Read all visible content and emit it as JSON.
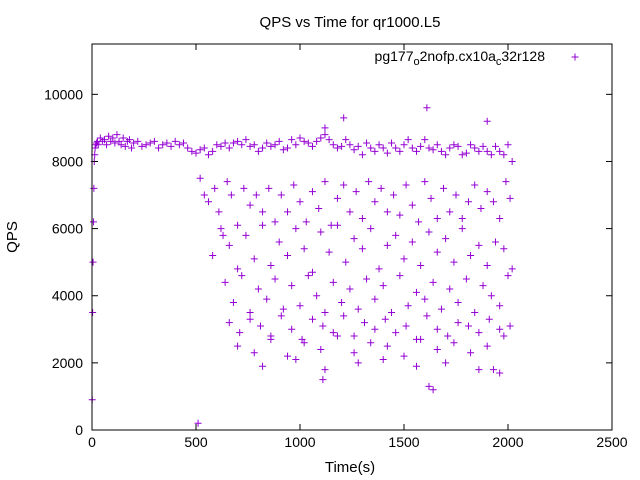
{
  "chart_data": {
    "type": "scatter",
    "title": "QPS vs Time for qr1000.L5",
    "xlabel": "Time(s)",
    "ylabel": "QPS",
    "xlim": [
      0,
      2500
    ],
    "ylim": [
      0,
      11500
    ],
    "xticks": [
      0,
      500,
      1000,
      1500,
      2000,
      2500
    ],
    "yticks": [
      0,
      2000,
      4000,
      6000,
      8000,
      10000
    ],
    "xtick_labels": [
      "0",
      "500",
      "1000",
      "1500",
      "2000",
      "2500"
    ],
    "ytick_labels": [
      "0",
      "2000",
      "4000",
      "6000",
      "8000",
      "10000"
    ],
    "grid": false,
    "legend": "top-right",
    "marker": "+",
    "series": [
      {
        "name": "pg177_o2nofp.cx10a_c32r128",
        "name_parts": [
          "pg177",
          "o",
          "2nofp.cx10a",
          "c",
          "32r128"
        ],
        "color": "#9400d3",
        "x": [
          1,
          3,
          5,
          7,
          9,
          11,
          13,
          15,
          18,
          22,
          26,
          30,
          40,
          50,
          60,
          70,
          80,
          90,
          100,
          110,
          120,
          130,
          140,
          150,
          160,
          170,
          180,
          190,
          200,
          220,
          240,
          260,
          280,
          300,
          320,
          340,
          360,
          380,
          400,
          420,
          440,
          460,
          480,
          500,
          520,
          540,
          560,
          580,
          600,
          620,
          640,
          660,
          680,
          700,
          720,
          740,
          760,
          780,
          800,
          820,
          840,
          860,
          880,
          900,
          920,
          940,
          960,
          980,
          1000,
          1020,
          1040,
          1060,
          1080,
          1100,
          1120,
          1140,
          1160,
          1180,
          1200,
          1220,
          1240,
          1260,
          1280,
          1300,
          1320,
          1340,
          1360,
          1380,
          1400,
          1420,
          1440,
          1460,
          1480,
          1500,
          1520,
          1540,
          1560,
          1580,
          1600,
          1620,
          1640,
          1660,
          1680,
          1700,
          1720,
          1740,
          1760,
          1780,
          1800,
          1820,
          1840,
          1860,
          1880,
          1900,
          1920,
          1940,
          1960,
          1980,
          2000,
          2020,
          520,
          560,
          590,
          610,
          630,
          650,
          670,
          700,
          730,
          760,
          790,
          820,
          850,
          880,
          910,
          940,
          970,
          1000,
          1030,
          1060,
          1090,
          1120,
          1150,
          1180,
          1210,
          1240,
          1270,
          1300,
          1330,
          1360,
          1390,
          1420,
          1450,
          1480,
          1510,
          1540,
          1570,
          1600,
          1630,
          1660,
          1690,
          1720,
          1750,
          1780,
          1810,
          1840,
          1870,
          1900,
          1930,
          1960,
          1990,
          2010,
          540,
          580,
          620,
          660,
          700,
          740,
          780,
          820,
          860,
          900,
          940,
          980,
          1020,
          1060,
          1100,
          1140,
          1180,
          1220,
          1260,
          1300,
          1340,
          1380,
          1420,
          1460,
          1500,
          1540,
          1580,
          1620,
          1660,
          1700,
          1740,
          1780,
          1820,
          1860,
          1900,
          1940,
          1980,
          2020,
          640,
          680,
          720,
          760,
          800,
          840,
          880,
          920,
          960,
          1000,
          1040,
          1080,
          1120,
          1160,
          1200,
          1240,
          1280,
          1320,
          1360,
          1400,
          1440,
          1480,
          1520,
          1560,
          1600,
          1640,
          1680,
          1720,
          1760,
          1800,
          1840,
          1880,
          1920,
          1960,
          2000,
          660,
          710,
          760,
          810,
          860,
          910,
          960,
          1010,
          1060,
          1110,
          1160,
          1210,
          1260,
          1310,
          1360,
          1410,
          1460,
          1510,
          1560,
          1610,
          1660,
          1710,
          1760,
          1810,
          1860,
          1910,
          1960,
          2010,
          700,
          780,
          860,
          940,
          1020,
          1100,
          1180,
          1260,
          1340,
          1420,
          1500,
          1580,
          1660,
          1740,
          1820,
          1900,
          1980,
          820,
          980,
          1120,
          1280,
          1400,
          1560,
          1700,
          1860,
          1960,
          1110,
          1620,
          1930,
          1640,
          1120,
          510,
          1610,
          1900,
          1210
        ],
        "y": [
          900,
          3500,
          5000,
          6200,
          7200,
          8000,
          8200,
          8400,
          8500,
          8550,
          8600,
          8500,
          8700,
          8600,
          8650,
          8500,
          8750,
          8600,
          8700,
          8550,
          8800,
          8600,
          8500,
          8700,
          8450,
          8600,
          8650,
          8400,
          8550,
          8600,
          8450,
          8500,
          8550,
          8600,
          8400,
          8500,
          8550,
          8450,
          8600,
          8500,
          8550,
          8400,
          8300,
          8250,
          8350,
          8400,
          8200,
          8300,
          8500,
          8450,
          8550,
          8400,
          8550,
          8600,
          8500,
          8650,
          8450,
          8500,
          8300,
          8400,
          8550,
          8450,
          8500,
          8600,
          8350,
          8400,
          8650,
          8500,
          8700,
          8600,
          8550,
          8450,
          8600,
          8700,
          8800,
          8650,
          8500,
          8400,
          8450,
          8650,
          8500,
          8350,
          8450,
          8200,
          8550,
          8400,
          8300,
          8500,
          8400,
          8250,
          8550,
          8400,
          8300,
          8500,
          8650,
          8400,
          8300,
          8450,
          8650,
          8400,
          8350,
          8500,
          8300,
          8200,
          8400,
          8500,
          8450,
          8200,
          8250,
          8500,
          8400,
          8300,
          8450,
          8300,
          8200,
          8450,
          8300,
          8200,
          8500,
          8000,
          7500,
          6800,
          7200,
          6500,
          5800,
          7400,
          7000,
          6100,
          7200,
          6700,
          7000,
          6500,
          7200,
          6200,
          7000,
          6500,
          7300,
          6800,
          6200,
          7100,
          6600,
          7400,
          6100,
          6900,
          7300,
          6500,
          7100,
          6300,
          7400,
          6800,
          7200,
          6500,
          7000,
          6400,
          7300,
          6700,
          6200,
          7400,
          6900,
          6300,
          7200,
          6500,
          7000,
          6300,
          6800,
          7300,
          6600,
          7100,
          6800,
          6300,
          7400,
          6900,
          7000,
          5200,
          6000,
          5500,
          4800,
          5800,
          5100,
          6100,
          4900,
          5600,
          5200,
          6000,
          5400,
          4700,
          5900,
          5300,
          6100,
          5000,
          5700,
          5400,
          6000,
          4800,
          5500,
          5800,
          5100,
          5600,
          4900,
          5900,
          5300,
          5700,
          5000,
          6000,
          5200,
          5500,
          4900,
          5600,
          5400,
          4800,
          4400,
          3800,
          4600,
          3500,
          4200,
          3900,
          4500,
          3600,
          4300,
          3700,
          4600,
          4000,
          3500,
          4400,
          3800,
          4200,
          3600,
          4500,
          3900,
          4300,
          3500,
          4600,
          3700,
          4100,
          3900,
          4400,
          3600,
          4200,
          3800,
          4500,
          3500,
          4300,
          4000,
          3700,
          4600,
          3200,
          2900,
          3300,
          3100,
          2800,
          3400,
          3000,
          2700,
          3300,
          3100,
          2900,
          3400,
          2800,
          3200,
          3000,
          3300,
          2900,
          3100,
          2700,
          3400,
          3000,
          2800,
          3200,
          3100,
          2900,
          3300,
          3000,
          3100,
          2500,
          2300,
          2700,
          2200,
          2600,
          2400,
          2800,
          2300,
          2600,
          2500,
          2200,
          2700,
          2400,
          2600,
          2300,
          2500,
          2800,
          1900,
          2100,
          1800,
          2000,
          2100,
          1900,
          2000,
          1800,
          1700,
          1500,
          1300,
          1800,
          1200,
          9000,
          200,
          9600,
          9200,
          9300
        ]
      }
    ]
  }
}
